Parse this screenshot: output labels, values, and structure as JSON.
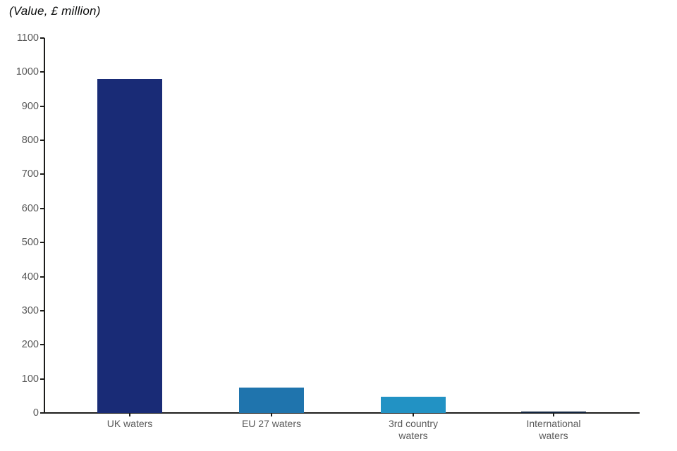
{
  "chart_data": {
    "type": "bar",
    "title": "(Value, £ million)",
    "categories": [
      "UK waters",
      "EU 27 waters",
      "3rd country\nwaters",
      "International\nwaters"
    ],
    "values": [
      980,
      75,
      48,
      3
    ],
    "series": [
      {
        "name": "Value, £ million",
        "values": [
          980,
          75,
          48,
          3
        ]
      }
    ],
    "bar_colors": [
      "#192b76",
      "#1f74ad",
      "#2292c4",
      "#13253f"
    ],
    "xlabel": "",
    "ylabel": "(Value, £ million)",
    "ylim": [
      0,
      1100
    ],
    "yticks": [
      0,
      100,
      200,
      300,
      400,
      500,
      600,
      700,
      800,
      900,
      1000,
      1100
    ],
    "grid": false,
    "legend_position": "none",
    "colors": {
      "axis": "#1d1d1b",
      "tick_label": "#595959",
      "title_text": "#0b0c0c",
      "background": "#ffffff"
    }
  }
}
